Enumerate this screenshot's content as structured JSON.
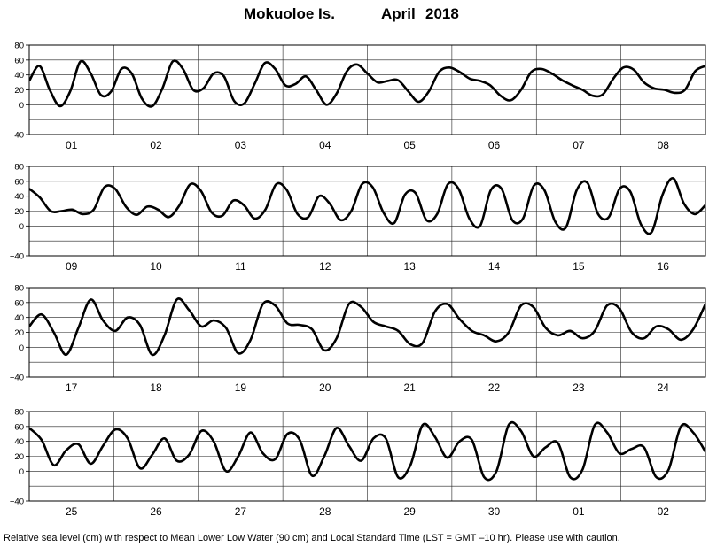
{
  "header": {
    "station": "Mokuoloe Is.",
    "month": "April",
    "year": "2018"
  },
  "footer": "Relative sea level (cm) with respect to Mean Lower Low Water (90 cm) and Local Standard Time (LST = GMT –10 hr). Please use with caution.",
  "chart_data": {
    "type": "line",
    "ylim": [
      -40,
      80
    ],
    "yticks": [
      "80",
      "60",
      "40",
      "20",
      "0",
      "−40"
    ],
    "grid": true,
    "panels": [
      {
        "days": [
          "01",
          "02",
          "03",
          "04",
          "05",
          "06",
          "07",
          "08"
        ],
        "points": [
          [
            0,
            32
          ],
          [
            1,
            52
          ],
          [
            2,
            20
          ],
          [
            3,
            -2
          ],
          [
            4,
            18
          ],
          [
            5,
            58
          ],
          [
            6,
            42
          ],
          [
            7,
            13
          ],
          [
            8,
            18
          ],
          [
            9,
            48
          ],
          [
            10,
            42
          ],
          [
            11,
            8
          ],
          [
            12,
            -2
          ],
          [
            13,
            22
          ],
          [
            14,
            58
          ],
          [
            15,
            48
          ],
          [
            16,
            20
          ],
          [
            17,
            22
          ],
          [
            18,
            42
          ],
          [
            19,
            38
          ],
          [
            20,
            5
          ],
          [
            21,
            2
          ],
          [
            22,
            28
          ],
          [
            23,
            56
          ],
          [
            24,
            48
          ],
          [
            25,
            26
          ],
          [
            26,
            28
          ],
          [
            27,
            38
          ],
          [
            28,
            20
          ],
          [
            29,
            0
          ],
          [
            30,
            15
          ],
          [
            31,
            45
          ],
          [
            32,
            54
          ],
          [
            33,
            42
          ],
          [
            34,
            30
          ],
          [
            35,
            32
          ],
          [
            36,
            33
          ],
          [
            37,
            18
          ],
          [
            38,
            4
          ],
          [
            39,
            18
          ],
          [
            40,
            44
          ],
          [
            41,
            50
          ],
          [
            42,
            44
          ],
          [
            43,
            35
          ],
          [
            44,
            32
          ],
          [
            45,
            26
          ],
          [
            46,
            12
          ],
          [
            47,
            6
          ],
          [
            48,
            20
          ],
          [
            49,
            44
          ],
          [
            50,
            48
          ],
          [
            51,
            42
          ],
          [
            52,
            33
          ],
          [
            53,
            26
          ],
          [
            54,
            20
          ],
          [
            55,
            12
          ],
          [
            56,
            14
          ],
          [
            57,
            35
          ],
          [
            58,
            50
          ],
          [
            59,
            47
          ],
          [
            60,
            30
          ],
          [
            61,
            22
          ],
          [
            62,
            20
          ],
          [
            63,
            16
          ],
          [
            64,
            20
          ],
          [
            65,
            45
          ],
          [
            66,
            52
          ]
        ]
      },
      {
        "days": [
          "09",
          "10",
          "11",
          "12",
          "13",
          "14",
          "15",
          "16"
        ],
        "points": [
          [
            0,
            50
          ],
          [
            1,
            38
          ],
          [
            2,
            20
          ],
          [
            3,
            20
          ],
          [
            4,
            22
          ],
          [
            5,
            16
          ],
          [
            6,
            22
          ],
          [
            7,
            52
          ],
          [
            8,
            50
          ],
          [
            9,
            26
          ],
          [
            10,
            15
          ],
          [
            11,
            26
          ],
          [
            12,
            22
          ],
          [
            13,
            12
          ],
          [
            14,
            28
          ],
          [
            15,
            56
          ],
          [
            16,
            47
          ],
          [
            17,
            18
          ],
          [
            18,
            14
          ],
          [
            19,
            34
          ],
          [
            20,
            28
          ],
          [
            21,
            10
          ],
          [
            22,
            22
          ],
          [
            23,
            56
          ],
          [
            24,
            48
          ],
          [
            25,
            16
          ],
          [
            26,
            12
          ],
          [
            27,
            40
          ],
          [
            28,
            30
          ],
          [
            29,
            8
          ],
          [
            30,
            20
          ],
          [
            31,
            56
          ],
          [
            32,
            52
          ],
          [
            33,
            18
          ],
          [
            34,
            4
          ],
          [
            35,
            42
          ],
          [
            36,
            44
          ],
          [
            37,
            8
          ],
          [
            38,
            16
          ],
          [
            39,
            56
          ],
          [
            40,
            50
          ],
          [
            41,
            10
          ],
          [
            42,
            0
          ],
          [
            43,
            48
          ],
          [
            44,
            50
          ],
          [
            45,
            8
          ],
          [
            46,
            10
          ],
          [
            47,
            54
          ],
          [
            48,
            48
          ],
          [
            49,
            6
          ],
          [
            50,
            -2
          ],
          [
            51,
            48
          ],
          [
            52,
            58
          ],
          [
            53,
            16
          ],
          [
            54,
            12
          ],
          [
            55,
            50
          ],
          [
            56,
            46
          ],
          [
            57,
            2
          ],
          [
            58,
            -8
          ],
          [
            59,
            42
          ],
          [
            60,
            64
          ],
          [
            61,
            30
          ],
          [
            62,
            16
          ],
          [
            63,
            28
          ]
        ]
      },
      {
        "days": [
          "17",
          "18",
          "19",
          "20",
          "21",
          "22",
          "23",
          "24"
        ],
        "points": [
          [
            0,
            28
          ],
          [
            1,
            44
          ],
          [
            2,
            20
          ],
          [
            3,
            -10
          ],
          [
            4,
            26
          ],
          [
            5,
            64
          ],
          [
            6,
            36
          ],
          [
            7,
            22
          ],
          [
            8,
            40
          ],
          [
            9,
            30
          ],
          [
            10,
            -10
          ],
          [
            11,
            16
          ],
          [
            12,
            64
          ],
          [
            13,
            50
          ],
          [
            14,
            28
          ],
          [
            15,
            36
          ],
          [
            16,
            26
          ],
          [
            17,
            -8
          ],
          [
            18,
            10
          ],
          [
            19,
            58
          ],
          [
            20,
            56
          ],
          [
            21,
            32
          ],
          [
            22,
            30
          ],
          [
            23,
            24
          ],
          [
            24,
            -4
          ],
          [
            25,
            12
          ],
          [
            26,
            58
          ],
          [
            27,
            54
          ],
          [
            28,
            34
          ],
          [
            29,
            28
          ],
          [
            30,
            22
          ],
          [
            31,
            4
          ],
          [
            32,
            6
          ],
          [
            33,
            48
          ],
          [
            34,
            58
          ],
          [
            35,
            38
          ],
          [
            36,
            22
          ],
          [
            37,
            16
          ],
          [
            38,
            8
          ],
          [
            39,
            20
          ],
          [
            40,
            56
          ],
          [
            41,
            54
          ],
          [
            42,
            26
          ],
          [
            43,
            16
          ],
          [
            44,
            22
          ],
          [
            45,
            12
          ],
          [
            46,
            22
          ],
          [
            47,
            56
          ],
          [
            48,
            52
          ],
          [
            49,
            20
          ],
          [
            50,
            12
          ],
          [
            51,
            28
          ],
          [
            52,
            24
          ],
          [
            53,
            10
          ],
          [
            54,
            24
          ],
          [
            55,
            58
          ]
        ]
      },
      {
        "days": [
          "25",
          "26",
          "27",
          "28",
          "29",
          "30",
          "01",
          "02"
        ],
        "points": [
          [
            0,
            58
          ],
          [
            1,
            42
          ],
          [
            2,
            8
          ],
          [
            3,
            28
          ],
          [
            4,
            36
          ],
          [
            5,
            10
          ],
          [
            6,
            34
          ],
          [
            7,
            56
          ],
          [
            8,
            44
          ],
          [
            9,
            4
          ],
          [
            10,
            22
          ],
          [
            11,
            44
          ],
          [
            12,
            14
          ],
          [
            13,
            22
          ],
          [
            14,
            54
          ],
          [
            15,
            40
          ],
          [
            16,
            0
          ],
          [
            17,
            20
          ],
          [
            18,
            52
          ],
          [
            19,
            24
          ],
          [
            20,
            16
          ],
          [
            21,
            50
          ],
          [
            22,
            42
          ],
          [
            23,
            -6
          ],
          [
            24,
            20
          ],
          [
            25,
            58
          ],
          [
            26,
            34
          ],
          [
            27,
            14
          ],
          [
            28,
            44
          ],
          [
            29,
            44
          ],
          [
            30,
            -8
          ],
          [
            31,
            8
          ],
          [
            32,
            62
          ],
          [
            33,
            46
          ],
          [
            34,
            18
          ],
          [
            35,
            40
          ],
          [
            36,
            42
          ],
          [
            37,
            -8
          ],
          [
            38,
            0
          ],
          [
            39,
            62
          ],
          [
            40,
            54
          ],
          [
            41,
            20
          ],
          [
            42,
            32
          ],
          [
            43,
            38
          ],
          [
            44,
            -8
          ],
          [
            45,
            2
          ],
          [
            46,
            62
          ],
          [
            47,
            52
          ],
          [
            48,
            24
          ],
          [
            49,
            30
          ],
          [
            50,
            32
          ],
          [
            51,
            -8
          ],
          [
            52,
            2
          ],
          [
            53,
            60
          ],
          [
            54,
            52
          ],
          [
            55,
            26
          ]
        ]
      }
    ]
  }
}
